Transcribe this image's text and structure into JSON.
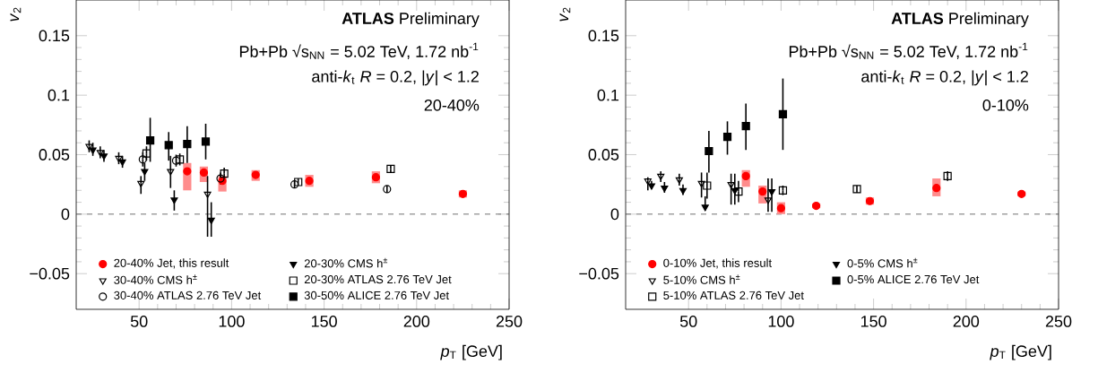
{
  "chart_data": [
    {
      "type": "scatter",
      "title": "**ATLAS** Preliminary",
      "subtitle": "Pb+Pb √s$_{NN}$ = 5.02 TeV, 1.72 nb$^{-1}$",
      "annotations": [
        "anti-*k*$_{t}$ *R* = 0.2, |*y*| < 1.2",
        "20-40%"
      ],
      "xlabel": "*p*$_{T}$ [GeV]",
      "ylabel": "*v*$_{2}$",
      "xlim": [
        16,
        250
      ],
      "ylim": [
        -0.08,
        0.18
      ],
      "xticks": [
        50,
        100,
        150,
        200,
        250
      ],
      "yticks": [
        {
          "value": -0.05,
          "label": "−0.05"
        },
        0,
        0.05,
        0.1,
        0.15
      ],
      "legend": "bottom left",
      "ref_lines": [
        {
          "axis": "y",
          "value": 0,
          "line_style": "dashed"
        }
      ],
      "series": [
        {
          "name": "20-40% Jet, this result",
          "color": "#ff0000",
          "marker": "circle",
          "x": [
            76,
            85,
            95,
            113,
            142,
            178,
            225
          ],
          "values": [
            0.036,
            0.035,
            0.028,
            0.033,
            0.028,
            0.031,
            0.017
          ],
          "errors": [
            [
              0.02,
              0.043
            ],
            [
              0.027,
              0.04
            ],
            [
              0.019,
              0.032
            ],
            [
              0.028,
              0.037
            ],
            [
              0.023,
              0.033
            ],
            [
              0.026,
              0.036
            ],
            [
              0.014,
              0.02
            ]
          ]
        },
        {
          "name": "20-30% CMS h$^{±}$",
          "color": "#000000",
          "marker": "triangle-down",
          "x": [
            25,
            31,
            41,
            53,
            69,
            89
          ],
          "values": [
            0.054,
            0.049,
            0.044,
            0.036,
            0.012,
            -0.005
          ],
          "errors": [
            [
              0.049,
              0.06
            ],
            [
              0.044,
              0.054
            ],
            [
              0.039,
              0.049
            ],
            [
              0.028,
              0.043
            ],
            [
              0.003,
              0.02
            ],
            [
              -0.019,
              0.01
            ]
          ]
        },
        {
          "name": "30-40% CMS h$^{±}$",
          "color": "#000000",
          "marker": "triangle-down-open",
          "x": [
            23,
            29,
            39,
            51,
            67,
            87
          ],
          "values": [
            0.057,
            0.052,
            0.047,
            0.026,
            0.036,
            0.017
          ],
          "errors": [
            [
              0.052,
              0.062
            ],
            [
              0.047,
              0.057
            ],
            [
              0.042,
              0.052
            ],
            [
              0.017,
              0.032
            ],
            [
              0.022,
              0.049
            ],
            [
              -0.019,
              0.032
            ]
          ]
        },
        {
          "name": "20-30% ATLAS 2.76 TeV Jet",
          "color": "#000000",
          "marker": "square-open",
          "x": [
            54,
            72,
            96,
            136,
            186
          ],
          "values": [
            0.051,
            0.046,
            0.034,
            0.027,
            0.038
          ],
          "errors": [
            [
              0.045,
              0.057
            ],
            [
              0.041,
              0.051
            ],
            [
              0.029,
              0.039
            ],
            [
              0.024,
              0.03
            ],
            [
              0.035,
              0.041
            ]
          ]
        },
        {
          "name": "30-40% ATLAS 2.76 TeV Jet",
          "color": "#000000",
          "marker": "circle-open",
          "x": [
            52,
            70,
            94,
            134,
            184
          ],
          "values": [
            0.046,
            0.045,
            0.03,
            0.025,
            0.021
          ],
          "errors": [
            [
              0.04,
              0.052
            ],
            [
              0.04,
              0.05
            ],
            [
              0.025,
              0.035
            ],
            [
              0.022,
              0.028
            ],
            [
              0.018,
              0.024
            ]
          ]
        },
        {
          "name": "30-50% ALICE 2.76 TeV Jet",
          "color": "#000000",
          "marker": "square",
          "x": [
            56,
            66,
            76,
            86
          ],
          "values": [
            0.062,
            0.058,
            0.059,
            0.061
          ],
          "errors": [
            [
              0.044,
              0.081
            ],
            [
              0.045,
              0.069
            ],
            [
              0.043,
              0.074
            ],
            [
              0.046,
              0.076
            ]
          ]
        }
      ]
    },
    {
      "type": "scatter",
      "title": "**ATLAS** Preliminary",
      "subtitle": "Pb+Pb √s$_{NN}$ = 5.02 TeV, 1.72 nb$^{-1}$",
      "annotations": [
        "anti-*k*$_{t}$ *R* = 0.2, |*y*| < 1.2",
        "0-10%"
      ],
      "xlabel": "*p*$_{T}$ [GeV]",
      "ylabel": "*v*$_{2}$",
      "xlim": [
        16,
        250
      ],
      "ylim": [
        -0.08,
        0.18
      ],
      "xticks": [
        50,
        100,
        150,
        200,
        250
      ],
      "yticks": [
        {
          "value": -0.05,
          "label": "−0.05"
        },
        0,
        0.05,
        0.1,
        0.15
      ],
      "legend": "bottom left",
      "ref_lines": [
        {
          "axis": "y",
          "value": 0,
          "line_style": "dashed"
        }
      ],
      "series": [
        {
          "name": "0-10% Jet, this result",
          "color": "#ff0000",
          "marker": "circle",
          "x": [
            81,
            90,
            100,
            119,
            148,
            184,
            230
          ],
          "values": [
            0.032,
            0.019,
            0.005,
            0.007,
            0.011,
            0.022,
            0.017
          ],
          "errors": [
            [
              0.023,
              0.037
            ],
            [
              0.009,
              0.024
            ],
            [
              0,
              0.01
            ],
            [
              0.005,
              0.009
            ],
            [
              0.008,
              0.014
            ],
            [
              0.015,
              0.03
            ],
            [
              0.015,
              0.019
            ]
          ]
        },
        {
          "name": "0-5% CMS h$^{±}$",
          "color": "#000000",
          "marker": "triangle-down",
          "x": [
            30,
            37,
            47,
            59,
            75,
            95
          ],
          "values": [
            0.024,
            0.022,
            0.02,
            0.006,
            0.02,
            0.019
          ],
          "errors": [
            [
              0.021,
              0.028
            ],
            [
              0.018,
              0.027
            ],
            [
              0.016,
              0.025
            ],
            [
              0.003,
              0.015
            ],
            [
              0.008,
              0.034
            ],
            [
              0.002,
              0.03
            ]
          ]
        },
        {
          "name": "5-10% CMS h$^{±}$",
          "color": "#000000",
          "marker": "triangle-down-open",
          "x": [
            28,
            35,
            45,
            57,
            73,
            93
          ],
          "values": [
            0.028,
            0.032,
            0.029,
            0.026,
            0.025,
            0.012
          ],
          "errors": [
            [
              0.02,
              0.031
            ],
            [
              0.027,
              0.036
            ],
            [
              0.024,
              0.034
            ],
            [
              0.014,
              0.035
            ],
            [
              0.008,
              0.034
            ],
            [
              0.002,
              0.03
            ]
          ]
        },
        {
          "name": "0-5% ALICE 2.76 TeV Jet",
          "color": "#000000",
          "marker": "square",
          "x": [
            61,
            71,
            81,
            101
          ],
          "values": [
            0.053,
            0.065,
            0.074,
            0.084
          ],
          "errors": [
            [
              0.035,
              0.07
            ],
            [
              0.05,
              0.078
            ],
            [
              0.054,
              0.093
            ],
            [
              0.054,
              0.114
            ]
          ]
        },
        {
          "name": "5-10% ATLAS 2.76 TeV Jet",
          "color": "#000000",
          "marker": "square-open",
          "x": [
            60,
            77,
            101,
            141,
            190
          ],
          "values": [
            0.024,
            0.019,
            0.02,
            0.021,
            0.032
          ],
          "errors": [
            [
              0.013,
              0.035
            ],
            [
              0.01,
              0.028
            ],
            [
              0.016,
              0.024
            ],
            [
              0.018,
              0.024
            ],
            [
              0.028,
              0.036
            ]
          ]
        }
      ]
    }
  ]
}
